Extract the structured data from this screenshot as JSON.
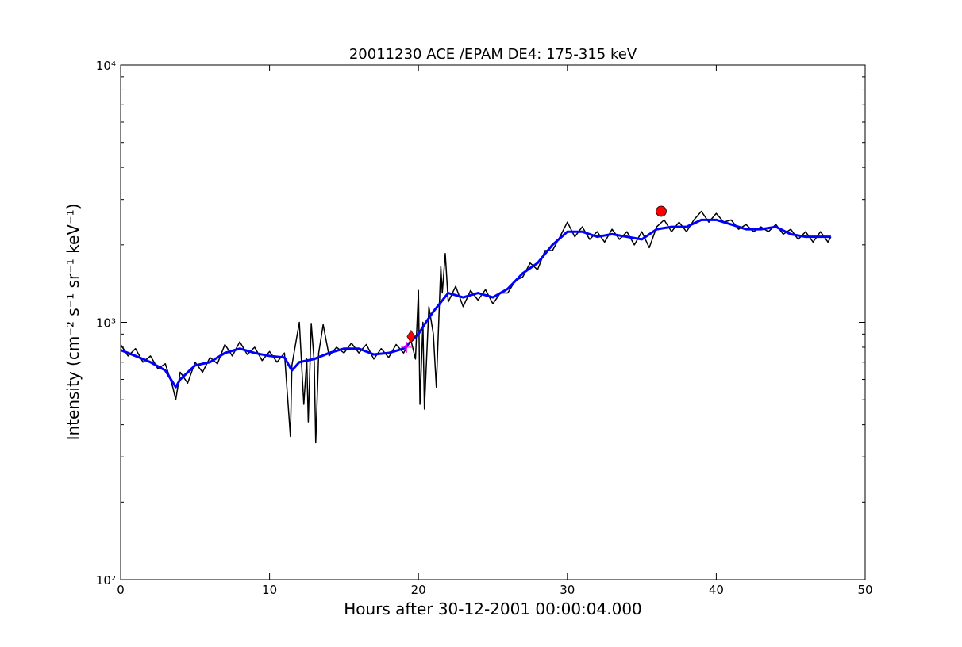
{
  "chart_data": {
    "type": "line",
    "title": "20011230 ACE /EPAM DE4: 175-315 keV",
    "xlabel": "Hours after 30-12-2001 00:00:04.000",
    "ylabel": "Intensity (cm⁻² s⁻¹ sr⁻¹ keV⁻¹)",
    "log_y": true,
    "xlim": [
      0,
      50
    ],
    "xticks": [
      0,
      10,
      20,
      30,
      40,
      50
    ],
    "ylim": [
      100,
      10000
    ],
    "yticks": [
      {
        "value": 100,
        "label": "10²"
      },
      {
        "value": 1000,
        "label": "10³"
      },
      {
        "value": 10000,
        "label": "10⁴"
      }
    ],
    "yminorticks": [
      200,
      300,
      400,
      500,
      600,
      700,
      800,
      900,
      2000,
      3000,
      4000,
      5000,
      6000,
      7000,
      8000,
      9000
    ],
    "series": [
      {
        "color": "#000000",
        "x": [
          0,
          0.5,
          1,
          1.5,
          2,
          2.5,
          3,
          3.5,
          3.7,
          4,
          4.5,
          5,
          5.5,
          6,
          6.5,
          7,
          7.5,
          8,
          8.5,
          9,
          9.5,
          10,
          10.5,
          11,
          11.4,
          11.5,
          12,
          12.3,
          12.5,
          12.6,
          12.8,
          13,
          13.1,
          13.3,
          13.6,
          14,
          14.5,
          15,
          15.5,
          16,
          16.5,
          17,
          17.5,
          18,
          18.5,
          19,
          19.5,
          19.8,
          20,
          20.1,
          20.3,
          20.4,
          20.7,
          21,
          21.2,
          21.5,
          21.6,
          21.8,
          22,
          22.5,
          23,
          23.5,
          24,
          24.5,
          25,
          25.5,
          26,
          26.5,
          27,
          27.5,
          28,
          28.5,
          29,
          29.5,
          30,
          30.5,
          31,
          31.5,
          32,
          32.5,
          33,
          33.5,
          34,
          34.5,
          35,
          35.5,
          36,
          36.5,
          37,
          37.5,
          38,
          38.5,
          39,
          39.5,
          40,
          40.5,
          41,
          41.5,
          42,
          42.5,
          43,
          43.5,
          44,
          44.5,
          45,
          45.5,
          46,
          46.5,
          47,
          47.5,
          47.7
        ],
        "values": [
          820,
          740,
          790,
          700,
          740,
          660,
          690,
          560,
          500,
          640,
          580,
          700,
          640,
          730,
          690,
          820,
          740,
          840,
          750,
          800,
          710,
          770,
          700,
          760,
          360,
          680,
          1000,
          480,
          720,
          410,
          990,
          700,
          340,
          760,
          980,
          740,
          800,
          760,
          830,
          760,
          820,
          720,
          790,
          730,
          820,
          760,
          850,
          720,
          1330,
          480,
          1000,
          460,
          1150,
          900,
          560,
          1650,
          1300,
          1850,
          1200,
          1380,
          1150,
          1330,
          1220,
          1340,
          1180,
          1300,
          1300,
          1450,
          1500,
          1700,
          1600,
          1900,
          1900,
          2150,
          2450,
          2150,
          2350,
          2100,
          2250,
          2050,
          2300,
          2100,
          2250,
          2000,
          2250,
          1950,
          2350,
          2500,
          2250,
          2450,
          2250,
          2500,
          2700,
          2450,
          2650,
          2450,
          2500,
          2300,
          2400,
          2250,
          2350,
          2250,
          2400,
          2200,
          2300,
          2100,
          2250,
          2050,
          2250,
          2050,
          2150
        ]
      },
      {
        "color": "#0000ff",
        "x": [
          0,
          1,
          2,
          3,
          3.7,
          4,
          5,
          6,
          7,
          8,
          9,
          10,
          11,
          11.5,
          12,
          13,
          14,
          15,
          16,
          17,
          18,
          19,
          20,
          20.5,
          21,
          22,
          23,
          24,
          25,
          26,
          27,
          28,
          29,
          30,
          31,
          32,
          33,
          34,
          35,
          36,
          37,
          38,
          39,
          40,
          41,
          42,
          43,
          44,
          45,
          46,
          47,
          47.7
        ],
        "values": [
          780,
          740,
          700,
          650,
          560,
          600,
          680,
          700,
          760,
          790,
          760,
          740,
          730,
          650,
          700,
          720,
          760,
          790,
          790,
          750,
          760,
          790,
          900,
          1000,
          1100,
          1300,
          1250,
          1300,
          1250,
          1350,
          1550,
          1700,
          2000,
          2250,
          2250,
          2150,
          2200,
          2150,
          2100,
          2300,
          2350,
          2350,
          2500,
          2500,
          2400,
          2300,
          2300,
          2350,
          2200,
          2150,
          2150,
          2150
        ]
      },
      {
        "color": "#ff00ff",
        "marker": "plus",
        "x": [
          19.2
        ],
        "values": [
          800
        ]
      },
      {
        "color": "#ff0000",
        "marker": "diamond",
        "x": [
          19.5
        ],
        "values": [
          880
        ]
      },
      {
        "color": "#ff0000",
        "marker": "circle",
        "x": [
          36.3
        ],
        "values": [
          2700
        ]
      }
    ]
  }
}
